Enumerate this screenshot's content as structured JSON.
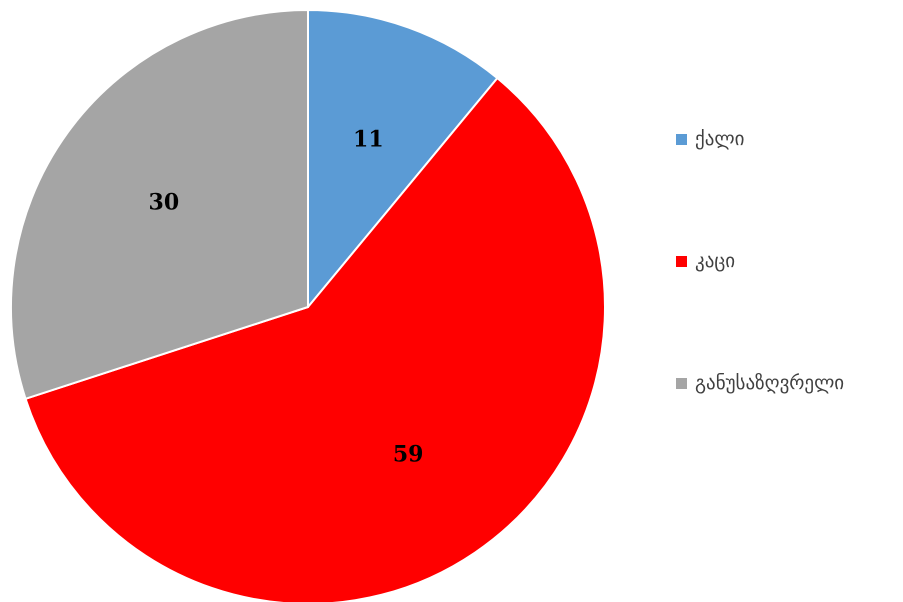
{
  "chart_data": {
    "type": "pie",
    "title": "",
    "categories": [
      "ქალი",
      "კაცი",
      "განუსაზღვრელი"
    ],
    "values": [
      11,
      59,
      30
    ],
    "colors": [
      "#5B9BD5",
      "#FF0000",
      "#A5A5A5"
    ],
    "data_labels": [
      "11",
      "59",
      "30"
    ],
    "start_angle": "12 o'clock",
    "direction": "clockwise",
    "legend_position": "right"
  }
}
